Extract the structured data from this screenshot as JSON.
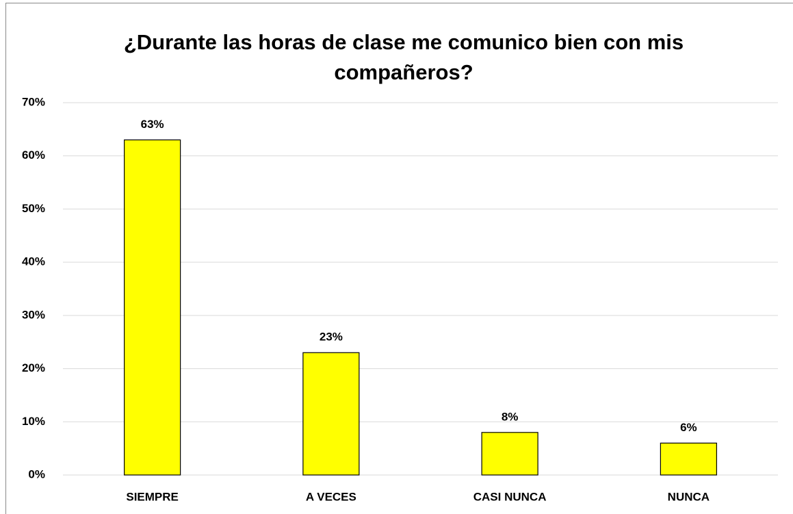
{
  "chart_data": {
    "type": "bar",
    "title": "¿Durante las horas de clase me comunico bien con mis compañeros?",
    "categories": [
      "SIEMPRE",
      "A VECES",
      "CASI NUNCA",
      "NUNCA"
    ],
    "values": [
      63,
      23,
      8,
      6
    ],
    "value_labels": [
      "63%",
      "23%",
      "8%",
      "6%"
    ],
    "color": "#ffff00",
    "ylim": [
      0,
      70
    ],
    "yticks": [
      {
        "value": 0,
        "label": "0%"
      },
      {
        "value": 10,
        "label": "10%"
      },
      {
        "value": 20,
        "label": "20%"
      },
      {
        "value": 30,
        "label": "30%"
      },
      {
        "value": 40,
        "label": "40%"
      },
      {
        "value": 50,
        "label": "50%"
      },
      {
        "value": 60,
        "label": "60%"
      },
      {
        "value": 70,
        "label": "70%"
      }
    ],
    "grid": true
  }
}
